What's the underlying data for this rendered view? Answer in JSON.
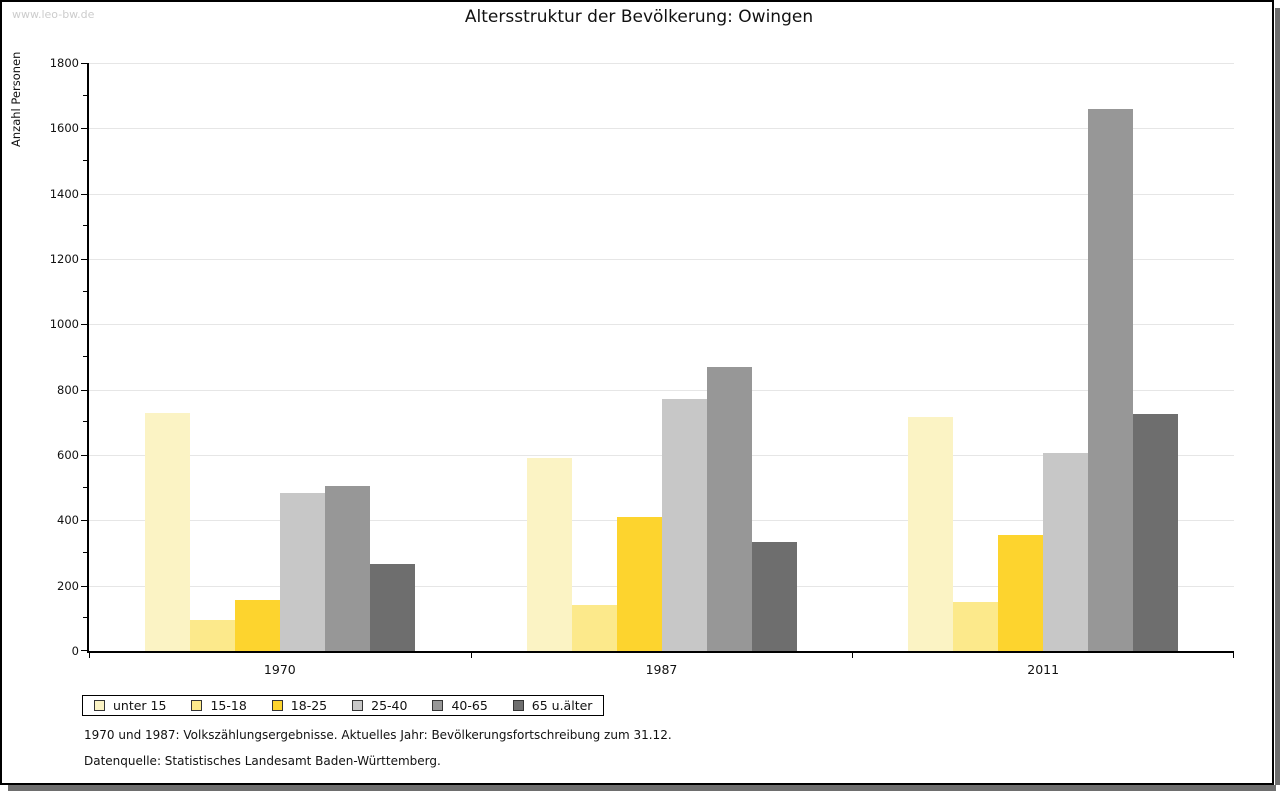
{
  "watermark": "www.leo-bw.de",
  "header": {
    "title": "Altersstruktur der Bevölkerung: Owingen"
  },
  "footer": {
    "line1": "1970 und 1987: Volkszählungsergebnisse. Aktuelles Jahr: Bevölkerungsfortschreibung zum 31.12.",
    "line2": "Datenquelle: Statistisches Landesamt Baden-Württemberg."
  },
  "chart_data": {
    "type": "bar",
    "title": "Altersstruktur der Bevölkerung: Owingen",
    "xlabel": "",
    "ylabel": "Anzahl Personen",
    "categories": [
      "1970",
      "1987",
      "2011"
    ],
    "series": [
      {
        "name": "unter 15",
        "color": "#fbf3c4",
        "values": [
          730,
          590,
          715
        ]
      },
      {
        "name": "15-18",
        "color": "#fce98b",
        "values": [
          95,
          140,
          150
        ]
      },
      {
        "name": "18-25",
        "color": "#fdd42e",
        "values": [
          155,
          410,
          355
        ]
      },
      {
        "name": "25-40",
        "color": "#c7c7c7",
        "values": [
          485,
          770,
          605
        ]
      },
      {
        "name": "40-65",
        "color": "#979797",
        "values": [
          505,
          870,
          1660
        ]
      },
      {
        "name": "65 u.älter",
        "color": "#6e6e6e",
        "values": [
          265,
          335,
          725
        ]
      }
    ],
    "ylim": [
      0,
      1800
    ],
    "ytick_step": 200,
    "minor_ytick_step": 100,
    "yticks": [
      0,
      200,
      400,
      600,
      800,
      1000,
      1200,
      1400,
      1600,
      1800
    ],
    "grid": true,
    "legend_position": "bottom-left",
    "gridline_color": "#e6e6e6"
  }
}
